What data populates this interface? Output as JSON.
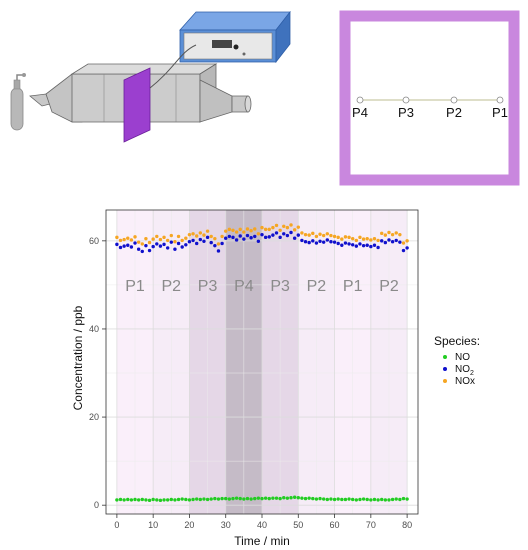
{
  "schematic": {
    "positions": [
      "P4",
      "P3",
      "P2",
      "P1"
    ],
    "colors": {
      "frame": "#c987de",
      "panel": "#9b3fcf",
      "analyzer_body": "#5b8fd6",
      "pipe": "#c8c8c8",
      "cylinder": "#b4b4b4"
    }
  },
  "chart_data": {
    "type": "scatter",
    "xlabel": "Time / min",
    "ylabel": "Concentration / ppb",
    "xlim": [
      -3,
      83
    ],
    "ylim": [
      -2,
      67
    ],
    "xticks": [
      0,
      10,
      20,
      30,
      40,
      50,
      60,
      70,
      80
    ],
    "yticks": [
      0,
      20,
      40,
      60
    ],
    "grid": true,
    "legend": {
      "title": "Species:",
      "placement": "right",
      "entries": [
        {
          "label": "NO",
          "color": "#22cc22"
        },
        {
          "label": "NO",
          "sub": "2",
          "color": "#1010cc"
        },
        {
          "label": "NOx",
          "color": "#f5a623"
        }
      ]
    },
    "segments": [
      {
        "label": "P1",
        "x_start": 0,
        "x_end": 10,
        "fill": "#e3a8e6",
        "opacity": 0.18
      },
      {
        "label": "P2",
        "x_start": 10,
        "x_end": 20,
        "fill": "#d8a8dc",
        "opacity": 0.22
      },
      {
        "label": "P3",
        "x_start": 20,
        "x_end": 30,
        "fill": "#b48cba",
        "opacity": 0.35
      },
      {
        "label": "P4",
        "x_start": 30,
        "x_end": 40,
        "fill": "#8c7890",
        "opacity": 0.5
      },
      {
        "label": "P3",
        "x_start": 40,
        "x_end": 50,
        "fill": "#b48cba",
        "opacity": 0.35
      },
      {
        "label": "P2",
        "x_start": 50,
        "x_end": 60,
        "fill": "#d8a8dc",
        "opacity": 0.22
      },
      {
        "label": "P1",
        "x_start": 60,
        "x_end": 70,
        "fill": "#e3a8e6",
        "opacity": 0.18
      },
      {
        "label": "P2",
        "x_start": 70,
        "x_end": 80,
        "fill": "#d8a8dc",
        "opacity": 0.22
      }
    ],
    "segment_label_y": 50,
    "x": [
      0,
      1,
      2,
      3,
      4,
      5,
      6,
      7,
      8,
      9,
      10,
      11,
      12,
      13,
      14,
      15,
      16,
      17,
      18,
      19,
      20,
      21,
      22,
      23,
      24,
      25,
      26,
      27,
      28,
      29,
      30,
      31,
      32,
      33,
      34,
      35,
      36,
      37,
      38,
      39,
      40,
      41,
      42,
      43,
      44,
      45,
      46,
      47,
      48,
      49,
      50,
      51,
      52,
      53,
      54,
      55,
      56,
      57,
      58,
      59,
      60,
      61,
      62,
      63,
      64,
      65,
      66,
      67,
      68,
      69,
      70,
      71,
      72,
      73,
      74,
      75,
      76,
      77,
      78,
      79,
      80
    ],
    "series": [
      {
        "name": "NO",
        "color": "#22cc22",
        "values": [
          1.2,
          1.3,
          1.2,
          1.3,
          1.2,
          1.3,
          1.2,
          1.3,
          1.2,
          1.1,
          1.3,
          1.2,
          1.1,
          1.2,
          1.2,
          1.3,
          1.2,
          1.3,
          1.4,
          1.3,
          1.2,
          1.3,
          1.4,
          1.3,
          1.4,
          1.3,
          1.4,
          1.5,
          1.4,
          1.5,
          1.5,
          1.4,
          1.5,
          1.6,
          1.5,
          1.4,
          1.5,
          1.4,
          1.5,
          1.6,
          1.5,
          1.6,
          1.5,
          1.6,
          1.6,
          1.5,
          1.7,
          1.6,
          1.7,
          1.8,
          1.7,
          1.6,
          1.5,
          1.6,
          1.5,
          1.4,
          1.5,
          1.4,
          1.3,
          1.4,
          1.3,
          1.4,
          1.3,
          1.3,
          1.4,
          1.3,
          1.2,
          1.3,
          1.4,
          1.3,
          1.2,
          1.3,
          1.2,
          1.3,
          1.2,
          1.2,
          1.3,
          1.4,
          1.3,
          1.5,
          1.4
        ]
      },
      {
        "name": "NO2",
        "color": "#1010cc",
        "values": [
          59.2,
          58.5,
          58.8,
          59.0,
          58.6,
          59.5,
          58.1,
          57.6,
          58.9,
          57.8,
          58.7,
          59.3,
          58.8,
          59.2,
          58.4,
          59.7,
          58.1,
          59.4,
          58.6,
          59.1,
          59.8,
          60.1,
          59.4,
          60.3,
          59.9,
          60.8,
          59.6,
          58.9,
          57.7,
          59.4,
          60.6,
          61.0,
          60.8,
          60.2,
          61.1,
          60.4,
          61.2,
          60.7,
          61.0,
          59.9,
          61.4,
          60.8,
          60.9,
          61.3,
          61.8,
          60.8,
          61.6,
          61.2,
          61.9,
          60.6,
          61.3,
          60.1,
          59.8,
          59.6,
          60.0,
          59.5,
          59.9,
          59.7,
          60.2,
          59.8,
          59.7,
          59.4,
          59.0,
          59.5,
          59.3,
          59.1,
          58.8,
          59.3,
          58.9,
          59.0,
          58.7,
          59.0,
          58.5,
          60.0,
          59.6,
          60.2,
          59.8,
          60.1,
          59.7,
          57.8,
          58.4
        ]
      },
      {
        "name": "NOx",
        "color": "#f5a623",
        "values": [
          60.8,
          60.1,
          60.3,
          60.6,
          60.2,
          60.9,
          59.7,
          59.3,
          60.5,
          59.6,
          60.4,
          61.0,
          60.3,
          60.8,
          60.1,
          61.2,
          59.8,
          61.0,
          60.1,
          60.6,
          61.4,
          61.6,
          61.1,
          61.8,
          61.3,
          62.2,
          61.0,
          60.5,
          59.3,
          61.0,
          62.2,
          62.6,
          62.4,
          62.0,
          62.6,
          62.0,
          62.7,
          62.3,
          62.7,
          61.6,
          63.0,
          62.6,
          62.6,
          63.0,
          63.5,
          62.4,
          63.3,
          63.0,
          63.6,
          62.5,
          63.1,
          61.8,
          61.4,
          61.3,
          61.7,
          61.0,
          61.5,
          61.2,
          61.6,
          61.2,
          61.0,
          60.8,
          60.4,
          60.9,
          60.8,
          60.5,
          60.1,
          60.8,
          60.4,
          60.5,
          60.2,
          60.5,
          60.1,
          61.7,
          61.3,
          61.9,
          61.4,
          61.8,
          61.4,
          59.5,
          60.0
        ]
      }
    ]
  }
}
